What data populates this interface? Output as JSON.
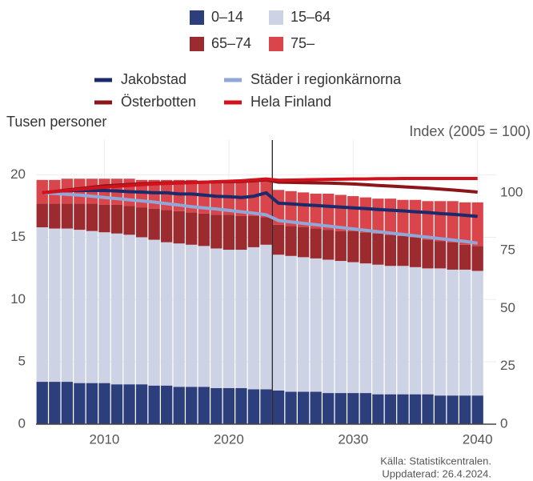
{
  "chart_data": {
    "type": "bar",
    "stacked": true,
    "x": [
      2005,
      2006,
      2007,
      2008,
      2009,
      2010,
      2011,
      2012,
      2013,
      2014,
      2015,
      2016,
      2017,
      2018,
      2019,
      2020,
      2021,
      2022,
      2023,
      2024,
      2025,
      2026,
      2027,
      2028,
      2029,
      2030,
      2031,
      2032,
      2033,
      2034,
      2035,
      2036,
      2037,
      2038,
      2039,
      2040
    ],
    "xlim": [
      2004.5,
      2041.5
    ],
    "xticks": [
      2010,
      2020,
      2030,
      2040
    ],
    "ylim": [
      0,
      22.8
    ],
    "yticks": [
      0,
      5,
      10,
      15,
      20
    ],
    "y2lim": [
      0,
      122.8
    ],
    "y2ticks": [
      0,
      25,
      50,
      75,
      100
    ],
    "ylabel": "Tusen personer",
    "y2label": "Index (2005 = 100)",
    "divider_x": 2023.5,
    "grid": true,
    "series": [
      {
        "name": "0–14",
        "color": "#2c3e7b",
        "values": [
          3.4,
          3.4,
          3.4,
          3.3,
          3.3,
          3.3,
          3.2,
          3.2,
          3.2,
          3.1,
          3.1,
          3.0,
          3.0,
          3.0,
          2.9,
          2.9,
          2.9,
          2.8,
          2.8,
          2.7,
          2.6,
          2.6,
          2.6,
          2.5,
          2.5,
          2.5,
          2.5,
          2.4,
          2.4,
          2.4,
          2.4,
          2.4,
          2.3,
          2.3,
          2.3,
          2.3
        ]
      },
      {
        "name": "15–64",
        "color": "#cdd2e4",
        "values": [
          12.4,
          12.3,
          12.3,
          12.3,
          12.2,
          12.1,
          12.1,
          12.0,
          11.8,
          11.7,
          11.5,
          11.5,
          11.4,
          11.3,
          11.2,
          11.1,
          11.1,
          11.4,
          11.6,
          10.9,
          10.9,
          10.8,
          10.7,
          10.7,
          10.6,
          10.5,
          10.4,
          10.4,
          10.3,
          10.3,
          10.2,
          10.1,
          10.2,
          10.1,
          10.1,
          10.0
        ]
      },
      {
        "name": "65–74",
        "color": "#9c2b30",
        "values": [
          1.9,
          2.0,
          2.0,
          2.1,
          2.2,
          2.2,
          2.3,
          2.3,
          2.4,
          2.5,
          2.6,
          2.6,
          2.6,
          2.6,
          2.7,
          2.8,
          2.7,
          2.5,
          2.2,
          2.4,
          2.4,
          2.4,
          2.4,
          2.4,
          2.4,
          2.5,
          2.5,
          2.5,
          2.5,
          2.4,
          2.4,
          2.3,
          2.2,
          2.2,
          2.0,
          2.0
        ]
      },
      {
        "name": "75–",
        "color": "#d9454b",
        "values": [
          1.9,
          1.9,
          2.0,
          2.0,
          2.0,
          2.1,
          2.1,
          2.2,
          2.2,
          2.3,
          2.4,
          2.5,
          2.6,
          2.6,
          2.7,
          2.7,
          2.8,
          2.9,
          3.0,
          2.8,
          2.8,
          2.8,
          2.8,
          2.9,
          2.9,
          2.8,
          2.8,
          2.8,
          2.9,
          2.9,
          3.0,
          3.1,
          3.2,
          3.3,
          3.4,
          3.5
        ]
      },
      {
        "name": "Jakobstad",
        "type": "line",
        "axis": "y2",
        "color": "#1b2a6b",
        "values": [
          100,
          100.5,
          101,
          101,
          101,
          101,
          100.8,
          100.5,
          100.3,
          100,
          100,
          99.5,
          99.5,
          99,
          98.5,
          98.3,
          98,
          98.5,
          100,
          95.5,
          95.2,
          94.8,
          94.5,
          94.2,
          93.8,
          93.5,
          93.2,
          92.8,
          92.5,
          92.2,
          91.8,
          91.5,
          91,
          90.7,
          90.3,
          89.8
        ]
      },
      {
        "name": "Städer i regionkärnorna",
        "type": "line",
        "axis": "y2",
        "color": "#90a8d8",
        "values": [
          100,
          99.7,
          99.3,
          99,
          98.5,
          98,
          97.5,
          97,
          96.5,
          96,
          95.3,
          94.7,
          94,
          93.5,
          93,
          92.4,
          91.8,
          91.2,
          90.5,
          88,
          87.4,
          86.8,
          86.2,
          85.6,
          85,
          84.4,
          83.8,
          83.2,
          82.6,
          82,
          81.4,
          80.8,
          80.2,
          79.6,
          79,
          78.2
        ]
      },
      {
        "name": "Österbotten",
        "type": "line",
        "axis": "y2",
        "color": "#8b1518",
        "values": [
          100,
          100.6,
          101.2,
          101.8,
          102.4,
          103,
          103.3,
          103.6,
          103.9,
          104.1,
          104.3,
          104.4,
          104.5,
          104.6,
          104.7,
          104.8,
          104.9,
          105.2,
          105.6,
          104.6,
          104.5,
          104.4,
          104.3,
          104.2,
          104,
          103.8,
          103.5,
          103.2,
          102.9,
          102.6,
          102.3,
          102,
          101.6,
          101.2,
          100.8,
          100.3
        ]
      },
      {
        "name": "Hela Finland",
        "type": "line",
        "axis": "y2",
        "color": "#d1121c",
        "values": [
          100,
          100.5,
          101,
          101.5,
          102,
          102.4,
          102.8,
          103.2,
          103.5,
          103.8,
          104,
          104.2,
          104.4,
          104.6,
          104.8,
          105,
          105.2,
          105.6,
          106,
          105.4,
          105.5,
          105.6,
          105.7,
          105.8,
          105.9,
          106,
          106,
          106.1,
          106.1,
          106.2,
          106.2,
          106.2,
          106.2,
          106.2,
          106.2,
          106.2
        ]
      }
    ],
    "source": "Källa: Statistikcentralen.",
    "updated": "Uppdaterad: 26.4.2024."
  }
}
